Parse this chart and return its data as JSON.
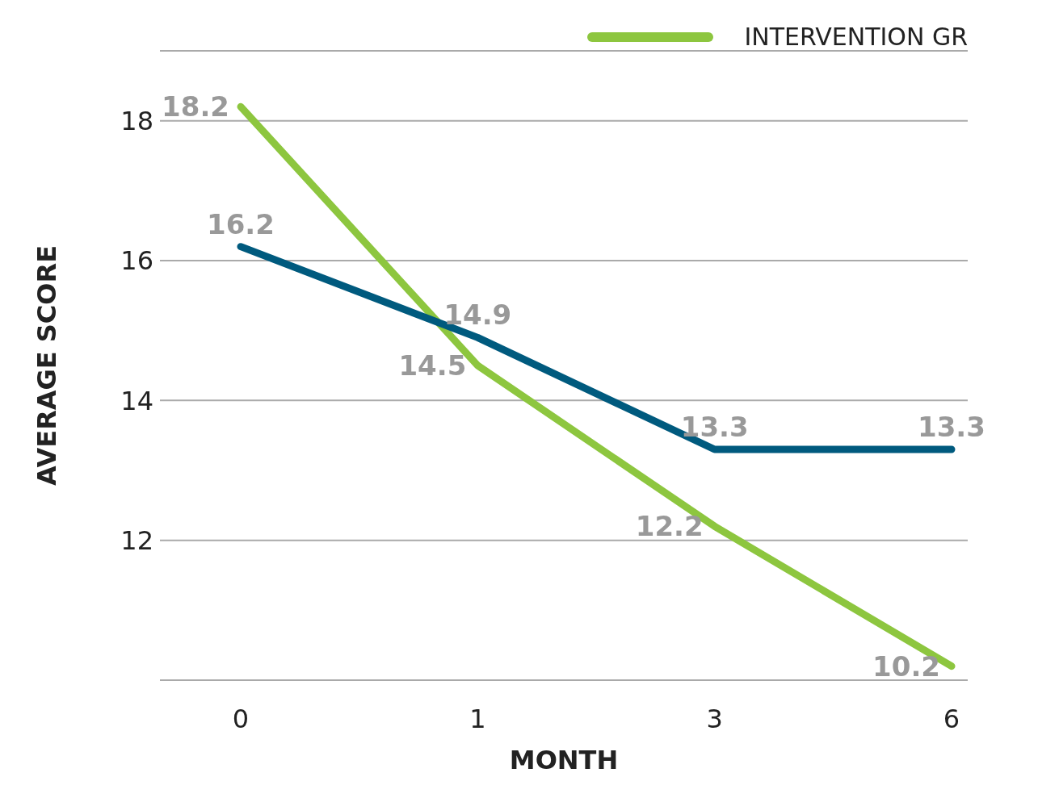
{
  "chart_data": {
    "type": "line",
    "xlabel": "MONTH",
    "ylabel": "AVERAGE SCORE",
    "categories": [
      "0",
      "1",
      "3",
      "6"
    ],
    "series": [
      {
        "name": "INTERVENTION GR",
        "color": "#8dc63f",
        "values": [
          18.2,
          14.5,
          12.2,
          10.2
        ]
      },
      {
        "color": "#005a7e",
        "values": [
          16.2,
          14.9,
          13.3,
          13.3
        ]
      }
    ],
    "ylim": [
      10,
      19
    ],
    "yticks": [
      12,
      14,
      16,
      18
    ],
    "grid": "y",
    "legend": "top right",
    "data_labels": true,
    "marker": "none",
    "line_style": "solid"
  }
}
